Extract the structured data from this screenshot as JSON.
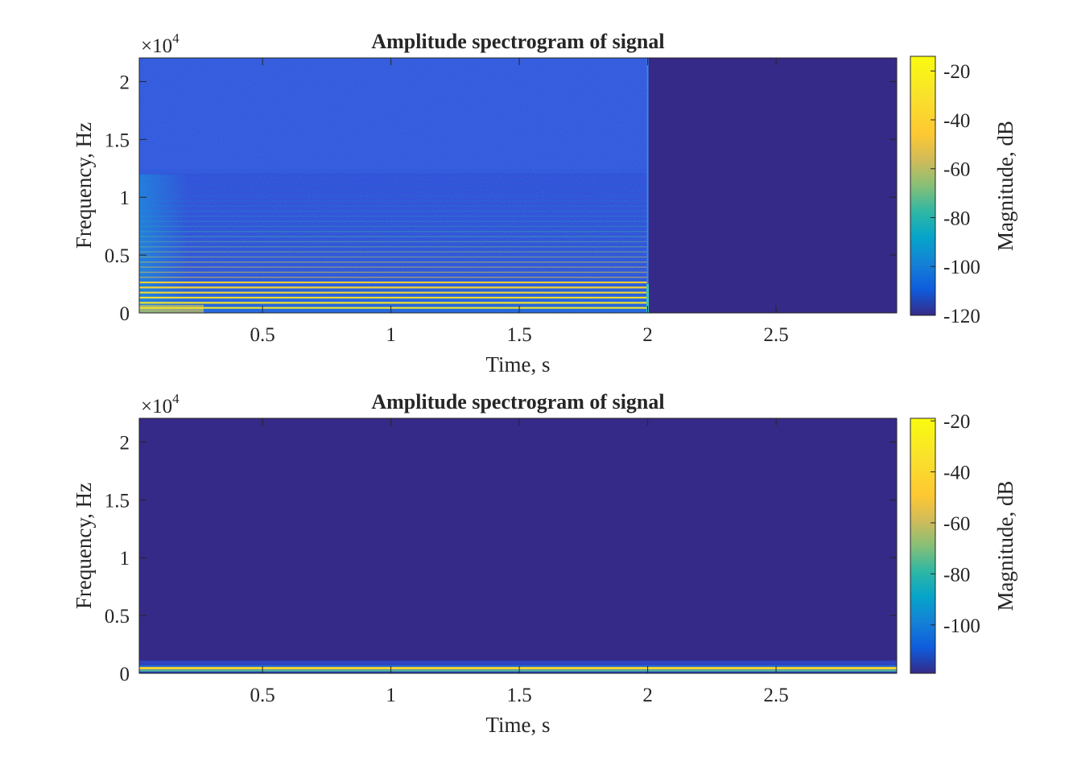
{
  "chart_data": [
    {
      "type": "heatmap",
      "title": "Amplitude spectrogram of signal",
      "xlabel": "Time, s",
      "ylabel": "Frequency, Hz",
      "y_exponent_label": "×10",
      "y_exponent_power": "4",
      "xlim": [
        0.02,
        2.97
      ],
      "ylim": [
        0,
        22050
      ],
      "xticks": [
        0.5,
        1,
        1.5,
        2,
        2.5
      ],
      "xtick_labels": [
        "0.5",
        "1",
        "1.5",
        "2",
        "2.5"
      ],
      "yticks": [
        0,
        5000,
        10000,
        15000,
        20000
      ],
      "ytick_labels": [
        "0",
        "0.5",
        "1",
        "1.5",
        "2"
      ],
      "signal_end_time": 2.0,
      "harmonic_spacing_hz": 440,
      "colormap": "parula",
      "colorbar": {
        "label": "Magnitude, dB",
        "clim": [
          -120,
          -14
        ],
        "ticks": [
          -20,
          -40,
          -60,
          -80,
          -100,
          -120
        ],
        "tick_labels": [
          "-20",
          "-40",
          "-60",
          "-80",
          "-100",
          "-120"
        ]
      }
    },
    {
      "type": "heatmap",
      "title": "Amplitude spectrogram of signal",
      "xlabel": "Time, s",
      "ylabel": "Frequency, Hz",
      "y_exponent_label": "×10",
      "y_exponent_power": "4",
      "xlim": [
        0.02,
        2.97
      ],
      "ylim": [
        0,
        22050
      ],
      "xticks": [
        0.5,
        1,
        1.5,
        2,
        2.5
      ],
      "xtick_labels": [
        "0.5",
        "1",
        "1.5",
        "2",
        "2.5"
      ],
      "yticks": [
        0,
        5000,
        10000,
        15000,
        20000
      ],
      "ytick_labels": [
        "0",
        "0.5",
        "1",
        "1.5",
        "2"
      ],
      "dominant_tone_hz": 440,
      "colormap": "parula",
      "colorbar": {
        "label": "Magnitude, dB",
        "clim": [
          -119,
          -19
        ],
        "ticks": [
          -20,
          -40,
          -60,
          -80,
          -100
        ],
        "tick_labels": [
          "-20",
          "-40",
          "-60",
          "-80",
          "-100"
        ]
      }
    }
  ]
}
